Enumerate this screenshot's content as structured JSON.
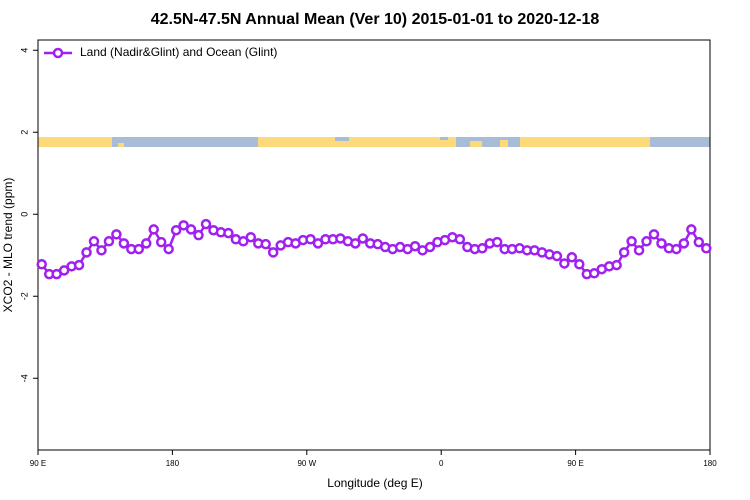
{
  "chart_data": {
    "type": "line",
    "title": "42.5N-47.5N Annual Mean (Ver 10)   2015-01-01 to 2020-12-18",
    "x_label": "Longitude (deg E)",
    "y_label": "XCO2 - MLO trend (ppm)",
    "xlim": [
      90,
      540
    ],
    "xticks": [
      {
        "value": 90,
        "label": "90 E"
      },
      {
        "value": 180,
        "label": "180"
      },
      {
        "value": 270,
        "label": "90 W"
      },
      {
        "value": 360,
        "label": "0"
      },
      {
        "value": 450,
        "label": "90 E"
      },
      {
        "value": 540,
        "label": "180"
      }
    ],
    "ylim": [
      -5.75,
      4.25
    ],
    "yticks": [
      -4,
      -2,
      0,
      2,
      4
    ],
    "legend_position": "upper left",
    "x": [
      92.5,
      97.5,
      102.5,
      107.5,
      112.5,
      117.5,
      122.5,
      127.5,
      132.5,
      137.5,
      142.5,
      147.5,
      152.5,
      157.5,
      162.5,
      167.5,
      172.5,
      177.5,
      182.5,
      187.5,
      192.5,
      197.5,
      202.5,
      207.5,
      212.5,
      217.5,
      222.5,
      227.5,
      232.5,
      237.5,
      242.5,
      247.5,
      252.5,
      257.5,
      262.5,
      267.5,
      272.5,
      277.5,
      282.5,
      287.5,
      292.5,
      297.5,
      302.5,
      307.5,
      312.5,
      317.5,
      322.5,
      327.5,
      332.5,
      337.5,
      342.5,
      347.5,
      352.5,
      357.5,
      362.5,
      367.5,
      372.5,
      377.5,
      382.5,
      387.5,
      392.5,
      397.5,
      402.5,
      407.5,
      412.5,
      417.5,
      422.5,
      427.5,
      432.5,
      437.5,
      442.5,
      447.5,
      452.5,
      457.5,
      462.5,
      467.5,
      472.5,
      477.5,
      482.5,
      487.5,
      492.5,
      497.5,
      502.5,
      507.5,
      512.5,
      517.5,
      522.5,
      527.5,
      532.5,
      537.5
    ],
    "series": [
      {
        "name": "Land (Nadir&Glint) and Ocean (Glint)",
        "color": "#a020f0",
        "values": [
          -1.22,
          -1.46,
          -1.46,
          -1.37,
          -1.27,
          -1.24,
          -0.93,
          -0.66,
          -0.88,
          -0.66,
          -0.49,
          -0.71,
          -0.85,
          -0.85,
          -0.71,
          -0.37,
          -0.68,
          -0.85,
          -0.39,
          -0.27,
          -0.37,
          -0.51,
          -0.24,
          -0.39,
          -0.44,
          -0.46,
          -0.61,
          -0.66,
          -0.56,
          -0.71,
          -0.73,
          -0.93,
          -0.76,
          -0.68,
          -0.71,
          -0.63,
          -0.61,
          -0.71,
          -0.61,
          -0.61,
          -0.59,
          -0.66,
          -0.71,
          -0.59,
          -0.71,
          -0.73,
          -0.8,
          -0.85,
          -0.8,
          -0.85,
          -0.78,
          -0.88,
          -0.8,
          -0.68,
          -0.63,
          -0.56,
          -0.61,
          -0.8,
          -0.85,
          -0.83,
          -0.71,
          -0.68,
          -0.85,
          -0.85,
          -0.83,
          -0.88,
          -0.88,
          -0.93,
          -0.98,
          -1.02,
          -1.2,
          -1.05,
          -1.22,
          -1.46,
          -1.44,
          -1.34,
          -1.27,
          -1.24,
          -0.93,
          -0.66,
          -0.88,
          -0.66,
          -0.49,
          -0.71,
          -0.83,
          -0.85,
          -0.71,
          -0.37,
          -0.68,
          -0.83
        ]
      }
    ]
  }
}
